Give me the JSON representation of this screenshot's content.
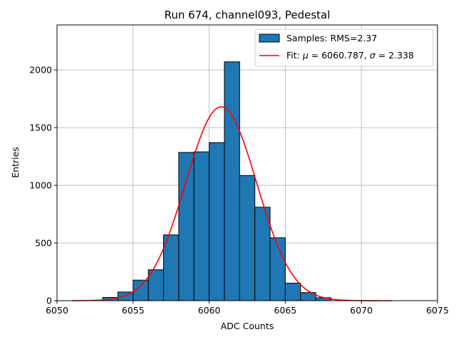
{
  "chart_data": {
    "type": "bar",
    "title": "Run 674, channel093, Pedestal",
    "xlabel": "ADC Counts",
    "ylabel": "Entries",
    "xlim": [
      6050,
      6075
    ],
    "ylim": [
      0,
      2390
    ],
    "xticks": [
      6050,
      6055,
      6060,
      6065,
      6070,
      6075
    ],
    "yticks": [
      0,
      500,
      1000,
      1500,
      2000
    ],
    "grid": true,
    "legend_position": "top-right",
    "histogram": {
      "name": "Samples: RMS=2.37",
      "color": "#1f77b4",
      "edge_color": "#000000",
      "bin_width": 1,
      "bins": [
        {
          "x0": 6053,
          "count": 28
        },
        {
          "x0": 6054,
          "count": 75
        },
        {
          "x0": 6055,
          "count": 178
        },
        {
          "x0": 6056,
          "count": 268
        },
        {
          "x0": 6057,
          "count": 570
        },
        {
          "x0": 6058,
          "count": 1285
        },
        {
          "x0": 6059,
          "count": 1290
        },
        {
          "x0": 6060,
          "count": 1370
        },
        {
          "x0": 6061,
          "count": 2070
        },
        {
          "x0": 6062,
          "count": 1085
        },
        {
          "x0": 6063,
          "count": 810
        },
        {
          "x0": 6064,
          "count": 545
        },
        {
          "x0": 6065,
          "count": 152
        },
        {
          "x0": 6066,
          "count": 70
        },
        {
          "x0": 6067,
          "count": 25
        }
      ]
    },
    "fit": {
      "name": "Fit: μ = 6060.787, σ = 2.338",
      "name_prefix": "Fit: ",
      "mu_symbol": "μ",
      "name_middle": " = 6060.787, ",
      "sigma_symbol": "σ",
      "name_suffix": " = 2.338",
      "color": "#ff0000",
      "mu": 6060.787,
      "sigma": 2.338,
      "amplitude": 1680,
      "x_range": [
        6051,
        6072
      ]
    }
  }
}
